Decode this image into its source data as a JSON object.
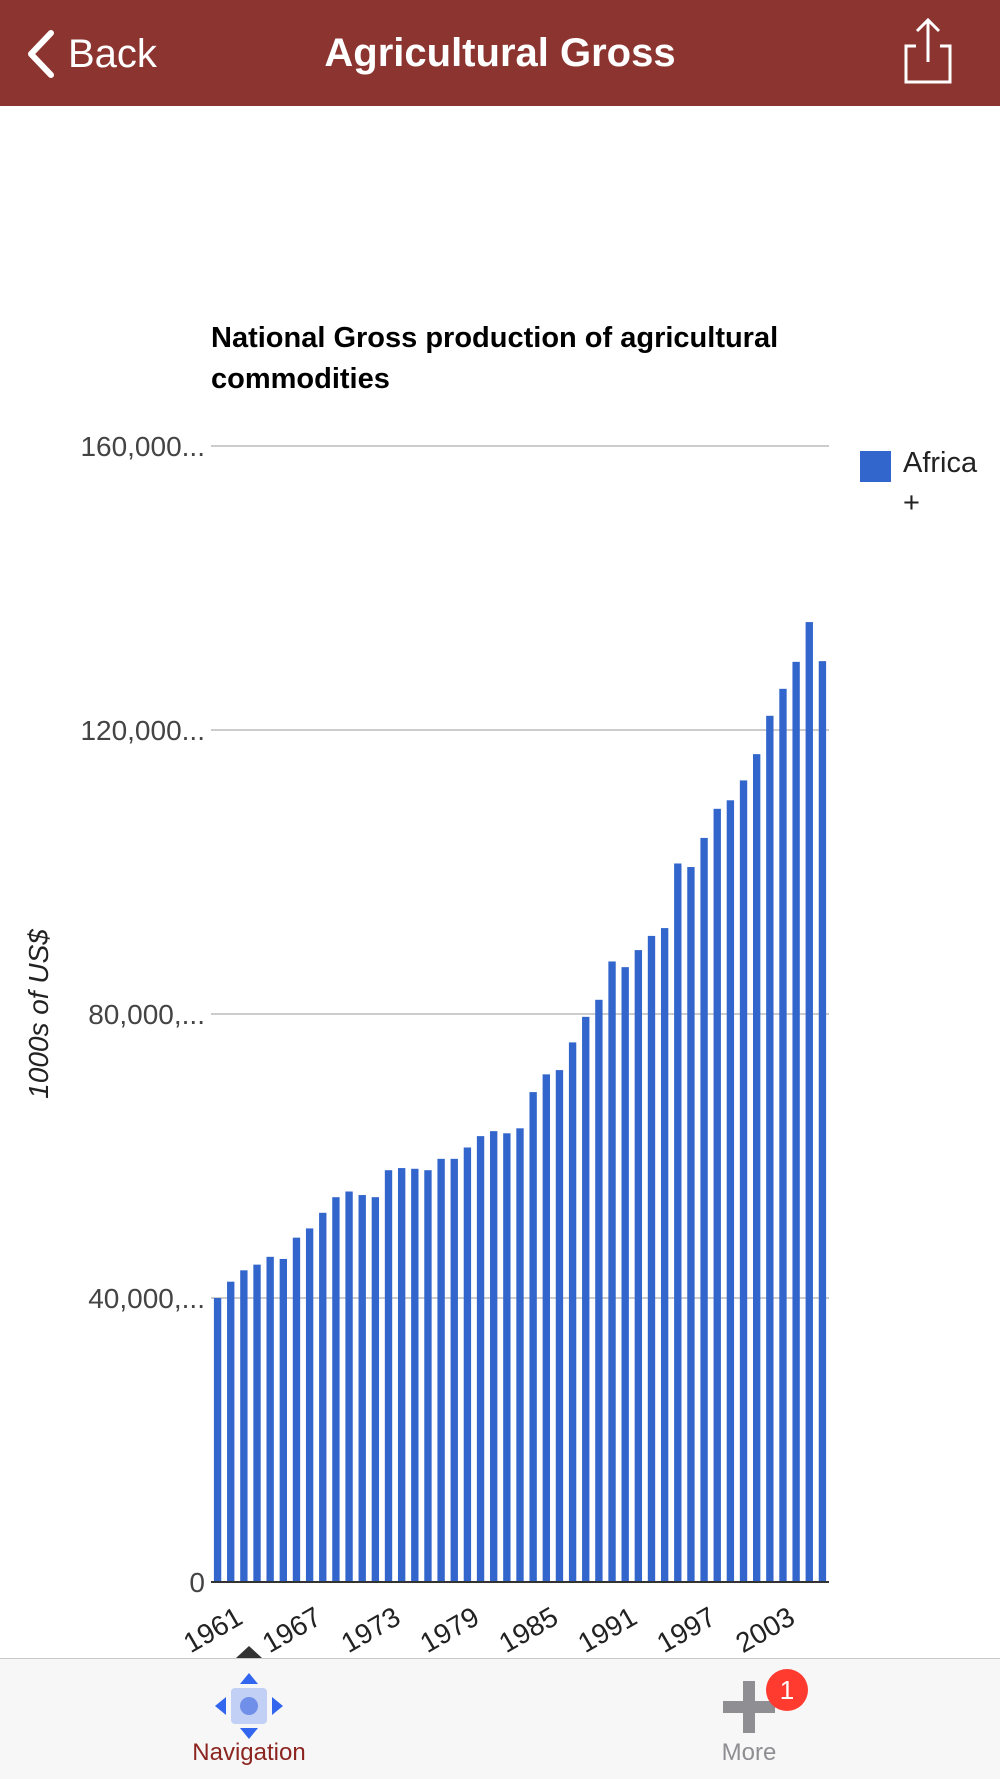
{
  "navbar": {
    "back_label": "Back",
    "title": "Agricultural Gross"
  },
  "legend": {
    "label": "Africa +"
  },
  "tabs": {
    "navigation_label": "Navigation",
    "more_label": "More",
    "more_badge": "1"
  },
  "colors": {
    "navbar": "#8c3530",
    "bar": "#3366cc",
    "badge": "#ff3b30"
  },
  "chart_data": {
    "type": "bar",
    "title": "National Gross production of agricultural commodities",
    "xlabel": "",
    "ylabel": "1000s of US$",
    "ylim": [
      0,
      160000
    ],
    "y_ticks": [
      0,
      40000,
      80000,
      120000,
      160000
    ],
    "y_tick_labels": [
      "0",
      "40,000,...",
      "80,000,...",
      "120,000...",
      "160,000..."
    ],
    "x_tick_labels": [
      "1961",
      "1967",
      "1973",
      "1979",
      "1985",
      "1991",
      "1997",
      "2003"
    ],
    "categories": [
      1961,
      1962,
      1963,
      1964,
      1965,
      1966,
      1967,
      1968,
      1969,
      1970,
      1971,
      1972,
      1973,
      1974,
      1975,
      1976,
      1977,
      1978,
      1979,
      1980,
      1981,
      1982,
      1983,
      1984,
      1985,
      1986,
      1987,
      1988,
      1989,
      1990,
      1991,
      1992,
      1993,
      1994,
      1995,
      1996,
      1997,
      1998,
      1999,
      2000,
      2001,
      2002,
      2003,
      2004,
      2005,
      2006,
      2007
    ],
    "series": [
      {
        "name": "Africa +",
        "color": "#3366cc",
        "values": [
          40000,
          42300,
          43900,
          44700,
          45800,
          45500,
          48500,
          49800,
          52000,
          54200,
          55000,
          54500,
          54200,
          58000,
          58300,
          58200,
          58000,
          59600,
          59600,
          61200,
          62800,
          63500,
          63200,
          63900,
          69000,
          71500,
          72100,
          76000,
          79600,
          82000,
          87400,
          86600,
          89000,
          91000,
          92100,
          101200,
          100700,
          104800,
          108900,
          110100,
          112900,
          116600,
          122000,
          125800,
          129600,
          135200,
          129700
        ]
      }
    ],
    "grid": true,
    "legend_position": "right"
  }
}
